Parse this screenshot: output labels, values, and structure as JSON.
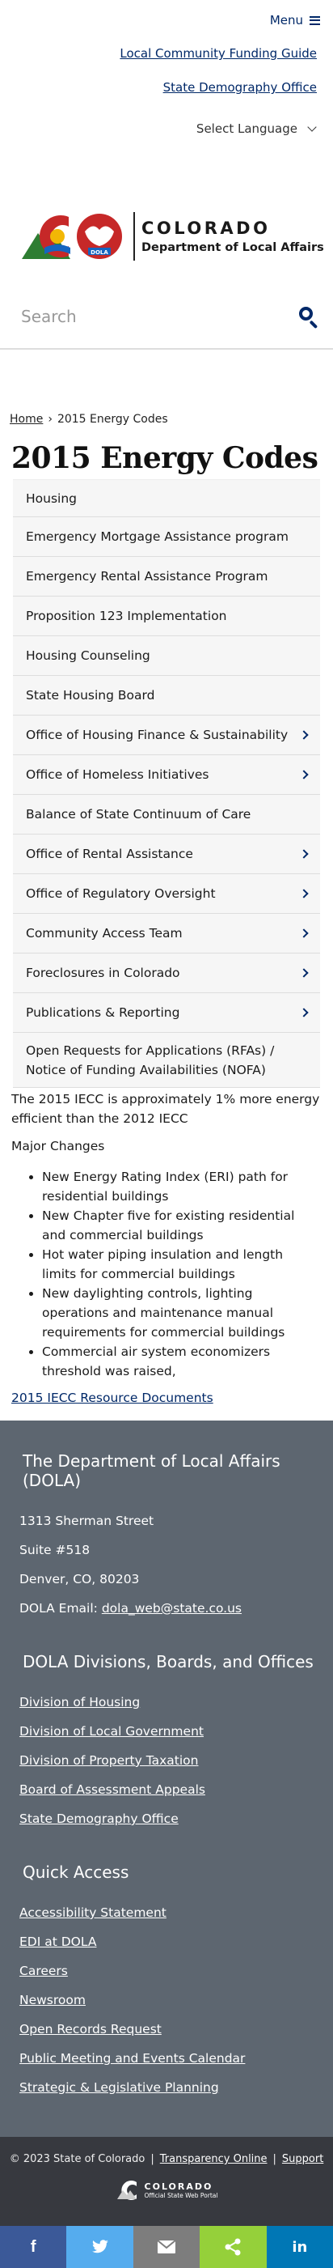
{
  "header": {
    "menu_label": "Menu",
    "utility_links": [
      "Local Community Funding Guide",
      "State Demography Office"
    ],
    "language_label": "Select Language"
  },
  "logo": {
    "state_name": "COLORADO",
    "department": "Department of Local Affairs",
    "badge_text": "DOLA"
  },
  "search": {
    "placeholder": "Search"
  },
  "breadcrumb": {
    "home": "Home",
    "separator": "›",
    "current": "2015 Energy Codes"
  },
  "page_title": "2015 Energy Codes",
  "side_nav": [
    {
      "label": "Housing",
      "has_children": false
    },
    {
      "label": "Emergency Mortgage Assistance program",
      "has_children": false
    },
    {
      "label": "Emergency Rental Assistance Program",
      "has_children": false
    },
    {
      "label": "Proposition 123 Implementation",
      "has_children": false
    },
    {
      "label": "Housing Counseling",
      "has_children": false
    },
    {
      "label": "State Housing Board",
      "has_children": false
    },
    {
      "label": "Office of Housing Finance & Sustainability",
      "has_children": true
    },
    {
      "label": "Office of Homeless Initiatives",
      "has_children": true
    },
    {
      "label": "Balance of State Continuum of Care",
      "has_children": false
    },
    {
      "label": "Office of Rental Assistance",
      "has_children": true
    },
    {
      "label": "Office of Regulatory Oversight",
      "has_children": true
    },
    {
      "label": "Community Access Team",
      "has_children": true
    },
    {
      "label": "Foreclosures in Colorado",
      "has_children": true
    },
    {
      "label": "Publications & Reporting",
      "has_children": true
    },
    {
      "label": "Open Requests for Applications (RFAs) / Notice of Funding Availabilities (NOFA)",
      "has_children": false
    }
  ],
  "content": {
    "intro": "The 2015 IECC is approximately 1% more energy efficient than the 2012 IECC",
    "major_heading": "Major Changes",
    "changes": [
      "New Energy Rating Index (ERI) path for residential buildings",
      "New Chapter five for existing residential and commercial buildings",
      "Hot water piping insulation and length limits for commercial buildings",
      "New daylighting controls, lighting operations and maintenance manual requirements for commercial buildings",
      "Commercial air system economizers threshold was raised,"
    ],
    "resource_link": "2015 IECC Resource Documents"
  },
  "footer": {
    "org_name": "The Department of Local Affairs (DOLA)",
    "address_line1": "1313 Sherman Street",
    "address_line2": "Suite  #518",
    "address_line3": "Denver, CO, 80203",
    "email_label": "DOLA Email:",
    "email": "dola_web@state.co.us",
    "divisions_heading": "DOLA Divisions, Boards, and Offices",
    "divisions": [
      "Division of Housing",
      "Division of Local Government",
      "Division of Property Taxation",
      "Board of Assessment Appeals",
      "State Demography Office"
    ],
    "quick_heading": "Quick Access",
    "quick_links": [
      "Accessibility Statement",
      "EDI at DOLA",
      "Careers",
      "Newsroom",
      "Open Records Request",
      "Public Meeting and Events Calendar",
      "Strategic & Legislative Planning"
    ]
  },
  "bottom": {
    "copyright": "© 2023 State of Colorado",
    "links": [
      "Transparency Online",
      "Support"
    ],
    "state_logo_line1": "COLORADO",
    "state_logo_line2": "Official State Web Portal"
  },
  "share": {
    "facebook": "f",
    "twitter": "twitter-bird-icon",
    "email": "envelope-icon",
    "share": "share-icon",
    "linkedin": "in"
  },
  "colors": {
    "link_blue": "#002868",
    "footer_bg": "#5d6670",
    "bottom_bg": "#37393f",
    "facebook": "#3b5998",
    "twitter": "#55acee",
    "email": "#7d7d7d",
    "share": "#95d03a",
    "linkedin": "#0077b5"
  }
}
